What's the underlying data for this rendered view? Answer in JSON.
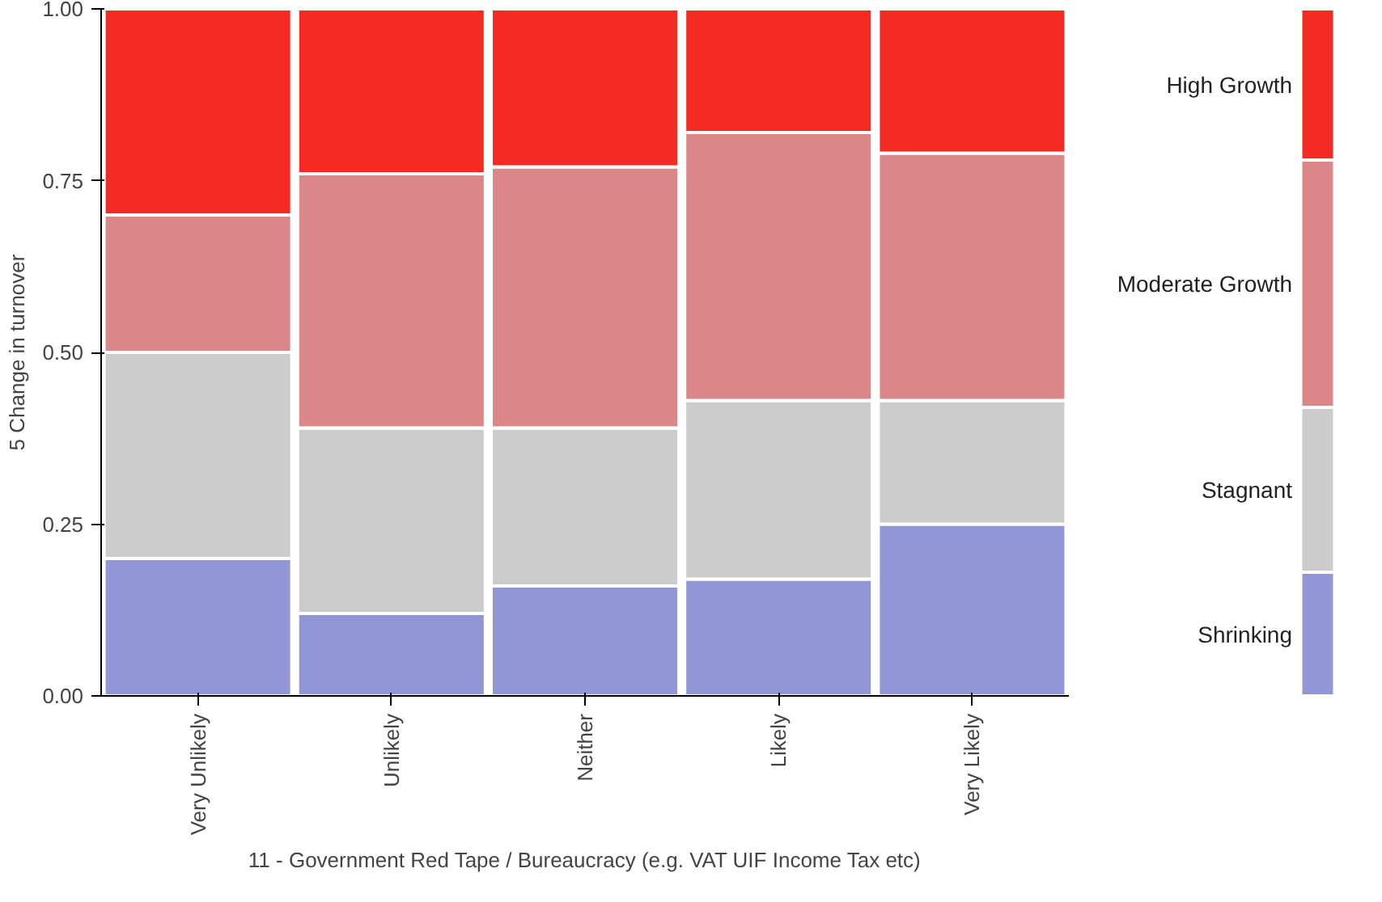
{
  "chart_data": [
    {
      "type": "bar",
      "stacked": true,
      "xlabel": "11 - Government Red Tape / Bureaucracy (e.g. VAT UIF Income Tax etc)",
      "ylabel": "5 Change in turnover",
      "categories": [
        "Very Unlikely",
        "Unlikely",
        "Neither",
        "Likely",
        "Very Likely"
      ],
      "ylim": [
        0,
        1
      ],
      "yticks": [
        {
          "value": 0,
          "label": "0.00"
        },
        {
          "value": 0.25,
          "label": "0.25"
        },
        {
          "value": 0.5,
          "label": "0.50"
        },
        {
          "value": 0.75,
          "label": "0.75"
        },
        {
          "value": 1,
          "label": "1.00"
        }
      ],
      "grid": false,
      "series": [
        {
          "color": "#9096d6",
          "values": [
            0.2,
            0.12,
            0.16,
            0.17,
            0.25
          ]
        },
        {
          "color": "#cccccc",
          "values": [
            0.3,
            0.27,
            0.23,
            0.26,
            0.18
          ]
        },
        {
          "color": "#dc8787",
          "values": [
            0.2,
            0.37,
            0.38,
            0.39,
            0.36
          ]
        },
        {
          "color": "#f52a22",
          "values": [
            0.3,
            0.24,
            0.23,
            0.18,
            0.21
          ]
        }
      ]
    },
    {
      "type": "bar",
      "stacked": true,
      "categories": [
        null
      ],
      "ylim": [
        0,
        1
      ],
      "tick_labels": false,
      "grid": false,
      "series": [
        {
          "name": "Shrinking",
          "color": "#9096d6",
          "values": [
            0.18
          ]
        },
        {
          "name": "Stagnant",
          "color": "#cccccc",
          "values": [
            0.24
          ]
        },
        {
          "name": "Moderate Growth",
          "color": "#dc8787",
          "values": [
            0.36
          ]
        },
        {
          "name": "High Growth",
          "color": "#f52a22",
          "values": [
            0.22
          ]
        }
      ]
    }
  ]
}
